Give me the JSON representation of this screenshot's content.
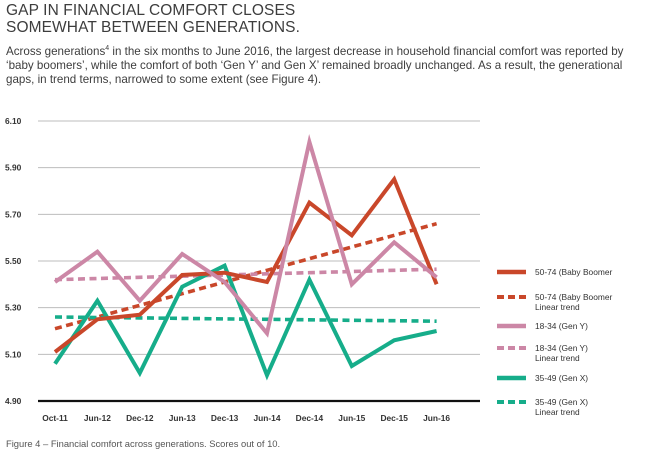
{
  "title_line1": "GAP IN FINANCIAL COMFORT CLOSES",
  "title_line2": "SOMEWHAT BETWEEN GENERATIONS.",
  "intro_part1": "Across generations",
  "intro_sup": "4",
  "intro_part2": " in the six months to June 2016, the largest decrease in household financial comfort was reported by ‘baby boomers’, while the comfort of both ‘Gen Y’ and Gen X’ remained broadly unchanged. As a result, the generational gaps, in trend terms, narrowed to some extent (see Figure 4).",
  "caption": "Figure 4 – Financial comfort across generations. Scores out of 10.",
  "chart_data": {
    "type": "line",
    "title": "Financial comfort across generations",
    "ylim": [
      4.9,
      6.1
    ],
    "yticks": [
      "6.10",
      "5.90",
      "5.70",
      "5.50",
      "5.30",
      "5.10",
      "4.90"
    ],
    "ytick_values": [
      6.1,
      5.9,
      5.7,
      5.5,
      5.3,
      5.1,
      4.9
    ],
    "categories": [
      "Oct-11",
      "Jun-12",
      "Dec-12",
      "Jun-13",
      "Dec-13",
      "Jun-14",
      "Dec-14",
      "Jun-15",
      "Dec-15",
      "Jun-16"
    ],
    "grid": true,
    "legend_position": "right",
    "series": [
      {
        "name": "50-74 (Baby Boomer",
        "name_line2": "",
        "style": "solid",
        "color": "#c9472a",
        "values": [
          5.11,
          5.25,
          5.27,
          5.44,
          5.45,
          5.41,
          5.75,
          5.61,
          5.85,
          5.4
        ]
      },
      {
        "name": "50-74 (Baby Boomer",
        "name_line2": "Linear trend",
        "style": "dashed",
        "color": "#c9472a",
        "values": [
          5.21,
          5.26,
          5.31,
          5.36,
          5.41,
          5.46,
          5.51,
          5.56,
          5.61,
          5.66
        ]
      },
      {
        "name": "18-34 (Gen Y)",
        "name_line2": "",
        "style": "solid",
        "color": "#cc87a6",
        "values": [
          5.41,
          5.54,
          5.33,
          5.53,
          5.41,
          5.19,
          6.01,
          5.4,
          5.58,
          5.43
        ]
      },
      {
        "name": "18-34 (Gen Y)",
        "name_line2": "Linear trend",
        "style": "dashed",
        "color": "#cc87a6",
        "values": [
          5.42,
          5.425,
          5.43,
          5.435,
          5.44,
          5.445,
          5.45,
          5.455,
          5.46,
          5.465
        ]
      },
      {
        "name": "35-49 (Gen X)",
        "name_line2": "",
        "style": "solid",
        "color": "#16ad8a",
        "values": [
          5.06,
          5.33,
          5.02,
          5.39,
          5.48,
          5.01,
          5.42,
          5.05,
          5.16,
          5.2
        ]
      },
      {
        "name": "35-49 (Gen X)",
        "name_line2": "Linear trend",
        "style": "dashed",
        "color": "#16ad8a",
        "values": [
          5.26,
          5.258,
          5.256,
          5.254,
          5.252,
          5.25,
          5.248,
          5.246,
          5.244,
          5.242
        ]
      }
    ]
  }
}
